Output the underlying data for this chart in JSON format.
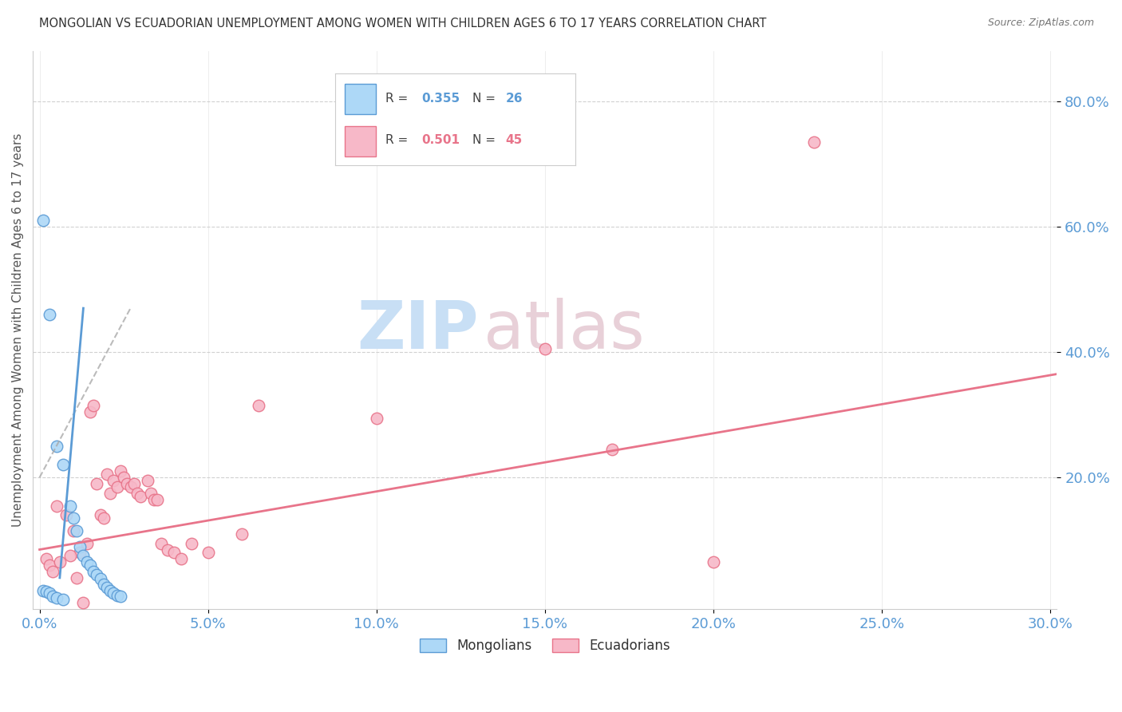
{
  "title": "MONGOLIAN VS ECUADORIAN UNEMPLOYMENT AMONG WOMEN WITH CHILDREN AGES 6 TO 17 YEARS CORRELATION CHART",
  "source": "Source: ZipAtlas.com",
  "ylabel": "Unemployment Among Women with Children Ages 6 to 17 years",
  "title_color": "#333333",
  "source_color": "#777777",
  "axis_label_color": "#5b9bd5",
  "background_color": "#ffffff",
  "grid_color": "#cccccc",
  "watermark_zip": "ZIP",
  "watermark_atlas": "atlas",
  "watermark_color": "#ddeeff",
  "mongolian_line_color": "#5b9bd5",
  "mongolian_dot_face": "#add8f7",
  "mongolian_dot_edge": "#5b9bd5",
  "ecuadorian_line_color": "#e8748a",
  "ecuadorian_dot_face": "#f7b8c8",
  "ecuadorian_dot_edge": "#e8748a",
  "mongolian_R": 0.355,
  "mongolian_N": 26,
  "ecuadorian_R": 0.501,
  "ecuadorian_N": 45,
  "xlim": [
    -0.002,
    0.302
  ],
  "ylim": [
    -0.01,
    0.88
  ],
  "xticks": [
    0.0,
    0.05,
    0.1,
    0.15,
    0.2,
    0.25,
    0.3
  ],
  "yticks": [
    0.2,
    0.4,
    0.6,
    0.8
  ],
  "mongolian_points": [
    [
      0.001,
      0.61
    ],
    [
      0.003,
      0.46
    ],
    [
      0.005,
      0.25
    ],
    [
      0.007,
      0.22
    ],
    [
      0.009,
      0.155
    ],
    [
      0.01,
      0.135
    ],
    [
      0.011,
      0.115
    ],
    [
      0.012,
      0.09
    ],
    [
      0.013,
      0.075
    ],
    [
      0.014,
      0.065
    ],
    [
      0.015,
      0.06
    ],
    [
      0.016,
      0.05
    ],
    [
      0.017,
      0.045
    ],
    [
      0.018,
      0.038
    ],
    [
      0.019,
      0.03
    ],
    [
      0.02,
      0.025
    ],
    [
      0.021,
      0.02
    ],
    [
      0.022,
      0.015
    ],
    [
      0.023,
      0.012
    ],
    [
      0.024,
      0.01
    ],
    [
      0.001,
      0.02
    ],
    [
      0.002,
      0.018
    ],
    [
      0.003,
      0.015
    ],
    [
      0.004,
      0.01
    ],
    [
      0.005,
      0.008
    ],
    [
      0.007,
      0.005
    ]
  ],
  "ecuadorian_points": [
    [
      0.005,
      0.155
    ],
    [
      0.008,
      0.14
    ],
    [
      0.01,
      0.115
    ],
    [
      0.012,
      0.08
    ],
    [
      0.014,
      0.095
    ],
    [
      0.015,
      0.305
    ],
    [
      0.016,
      0.315
    ],
    [
      0.017,
      0.19
    ],
    [
      0.018,
      0.14
    ],
    [
      0.019,
      0.135
    ],
    [
      0.02,
      0.205
    ],
    [
      0.021,
      0.175
    ],
    [
      0.022,
      0.195
    ],
    [
      0.023,
      0.185
    ],
    [
      0.024,
      0.21
    ],
    [
      0.025,
      0.2
    ],
    [
      0.026,
      0.19
    ],
    [
      0.027,
      0.185
    ],
    [
      0.028,
      0.19
    ],
    [
      0.029,
      0.175
    ],
    [
      0.03,
      0.17
    ],
    [
      0.032,
      0.195
    ],
    [
      0.033,
      0.175
    ],
    [
      0.034,
      0.165
    ],
    [
      0.035,
      0.165
    ],
    [
      0.036,
      0.095
    ],
    [
      0.038,
      0.085
    ],
    [
      0.04,
      0.08
    ],
    [
      0.042,
      0.07
    ],
    [
      0.045,
      0.095
    ],
    [
      0.05,
      0.08
    ],
    [
      0.06,
      0.11
    ],
    [
      0.002,
      0.07
    ],
    [
      0.003,
      0.06
    ],
    [
      0.004,
      0.05
    ],
    [
      0.006,
      0.065
    ],
    [
      0.009,
      0.075
    ],
    [
      0.011,
      0.04
    ],
    [
      0.065,
      0.315
    ],
    [
      0.1,
      0.295
    ],
    [
      0.15,
      0.405
    ],
    [
      0.17,
      0.245
    ],
    [
      0.2,
      0.065
    ],
    [
      0.23,
      0.735
    ],
    [
      0.013,
      0.0
    ]
  ],
  "mongo_trend_x": [
    0.0,
    0.027
  ],
  "mongo_trend_y": [
    0.2,
    0.47
  ],
  "ecua_trend_x": [
    0.0,
    0.302
  ],
  "ecua_trend_y": [
    0.085,
    0.365
  ]
}
